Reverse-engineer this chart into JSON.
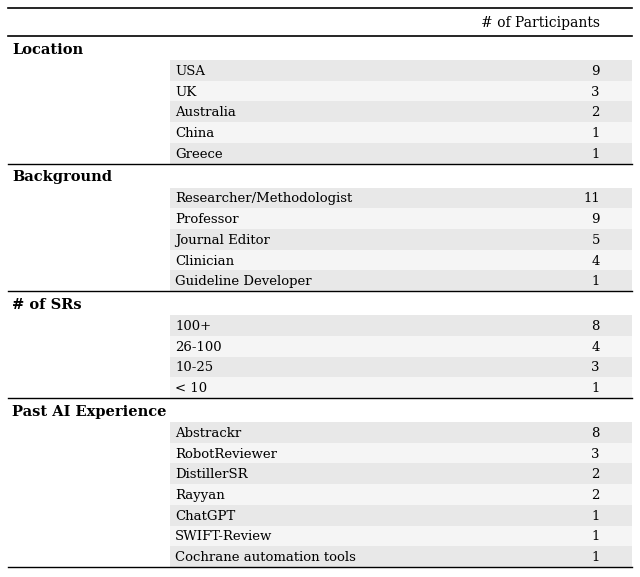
{
  "header": "# of Participants",
  "sections": [
    {
      "title": "Location",
      "rows": [
        {
          "label": "USA",
          "value": "9"
        },
        {
          "label": "UK",
          "value": "3"
        },
        {
          "label": "Australia",
          "value": "2"
        },
        {
          "label": "China",
          "value": "1"
        },
        {
          "label": "Greece",
          "value": "1"
        }
      ]
    },
    {
      "title": "Background",
      "rows": [
        {
          "label": "Researcher/Methodologist",
          "value": "11"
        },
        {
          "label": "Professor",
          "value": "9"
        },
        {
          "label": "Journal Editor",
          "value": "5"
        },
        {
          "label": "Clinician",
          "value": "4"
        },
        {
          "label": "Guideline Developer",
          "value": "1"
        }
      ]
    },
    {
      "title": "# of SRs",
      "rows": [
        {
          "label": "100+",
          "value": "8"
        },
        {
          "label": "26-100",
          "value": "4"
        },
        {
          "label": "10-25",
          "value": "3"
        },
        {
          "label": "< 10",
          "value": "1"
        }
      ]
    },
    {
      "title": "Past AI Experience",
      "rows": [
        {
          "label": "Abstrackr",
          "value": "8"
        },
        {
          "label": "RobotReviewer",
          "value": "3"
        },
        {
          "label": "DistillerSR",
          "value": "2"
        },
        {
          "label": "Rayyan",
          "value": "2"
        },
        {
          "label": "ChatGPT",
          "value": "1"
        },
        {
          "label": "SWIFT-Review",
          "value": "1"
        },
        {
          "label": "Cochrane automation tools",
          "value": "1"
        }
      ]
    }
  ],
  "bg_color": "#ffffff",
  "row_shaded_color": "#e8e8e8",
  "row_unshaded_color": "#f5f5f5",
  "line_color": "#000000",
  "title_fontsize": 10.5,
  "row_fontsize": 9.5,
  "header_fontsize": 10
}
